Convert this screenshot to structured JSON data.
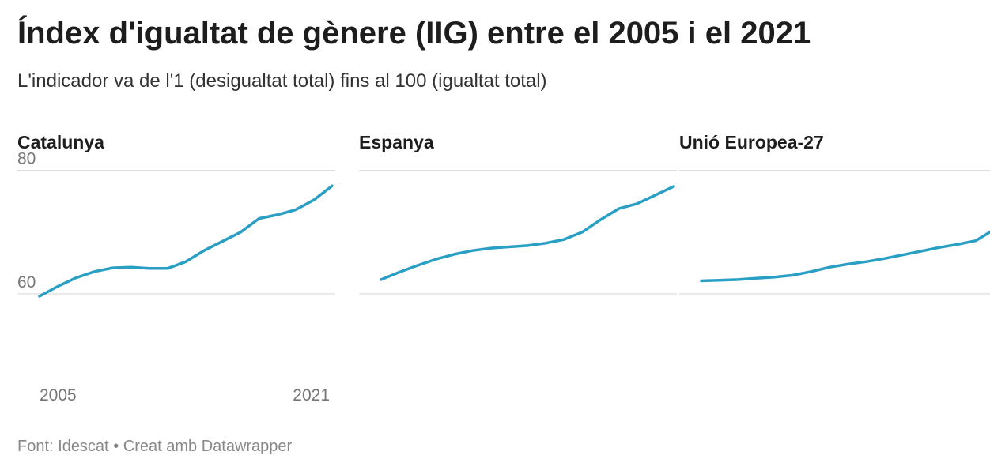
{
  "title": "Índex d'igualtat de gènere (IIG) entre el 2005 i el 2021",
  "subtitle": "L'indicador va de l'1 (desigualtat total) fins al 100 (igualtat total)",
  "footer": {
    "source_label": "Font: Idescat",
    "separator": "•",
    "credit": "Creat amb Datawrapper"
  },
  "colors": {
    "line": "#2a9fc4",
    "grid": "#dddddd"
  },
  "chart_data": [
    {
      "type": "line",
      "title": "Catalunya",
      "x": [
        2005,
        2006,
        2007,
        2008,
        2009,
        2010,
        2011,
        2012,
        2013,
        2014,
        2015,
        2016,
        2017,
        2018,
        2019,
        2020,
        2021
      ],
      "values": [
        59.6,
        61.2,
        62.6,
        63.6,
        64.2,
        64.3,
        64.1,
        64.1,
        65.2,
        67.0,
        68.5,
        70.0,
        72.2,
        72.8,
        73.6,
        75.2,
        77.5
      ],
      "ylim": [
        50,
        82
      ],
      "yticks": [
        60,
        80
      ],
      "xticks": [
        "2005",
        "2021"
      ],
      "grid": true
    },
    {
      "type": "line",
      "title": "Espanya",
      "x": [
        2005,
        2006,
        2007,
        2008,
        2009,
        2010,
        2011,
        2012,
        2013,
        2014,
        2015,
        2016,
        2017,
        2018,
        2019,
        2020,
        2021
      ],
      "values": [
        62.3,
        63.5,
        64.6,
        65.6,
        66.4,
        67.0,
        67.4,
        67.6,
        67.8,
        68.2,
        68.8,
        70.0,
        72.0,
        73.8,
        74.6,
        76.0,
        77.4
      ],
      "ylim": [
        50,
        82
      ],
      "yticks": [
        60,
        80
      ],
      "grid": true
    },
    {
      "type": "line",
      "title": "Unió Europea-27",
      "x": [
        2005,
        2006,
        2007,
        2008,
        2009,
        2010,
        2011,
        2012,
        2013,
        2014,
        2015,
        2016,
        2017,
        2018,
        2019,
        2020,
        2021
      ],
      "values": [
        62.1,
        62.2,
        62.3,
        62.5,
        62.7,
        63.0,
        63.6,
        64.3,
        64.8,
        65.2,
        65.7,
        66.3,
        66.9,
        67.5,
        68.0,
        68.6,
        70.4
      ],
      "ylim": [
        50,
        82
      ],
      "yticks": [
        60,
        80
      ],
      "grid": true
    }
  ]
}
